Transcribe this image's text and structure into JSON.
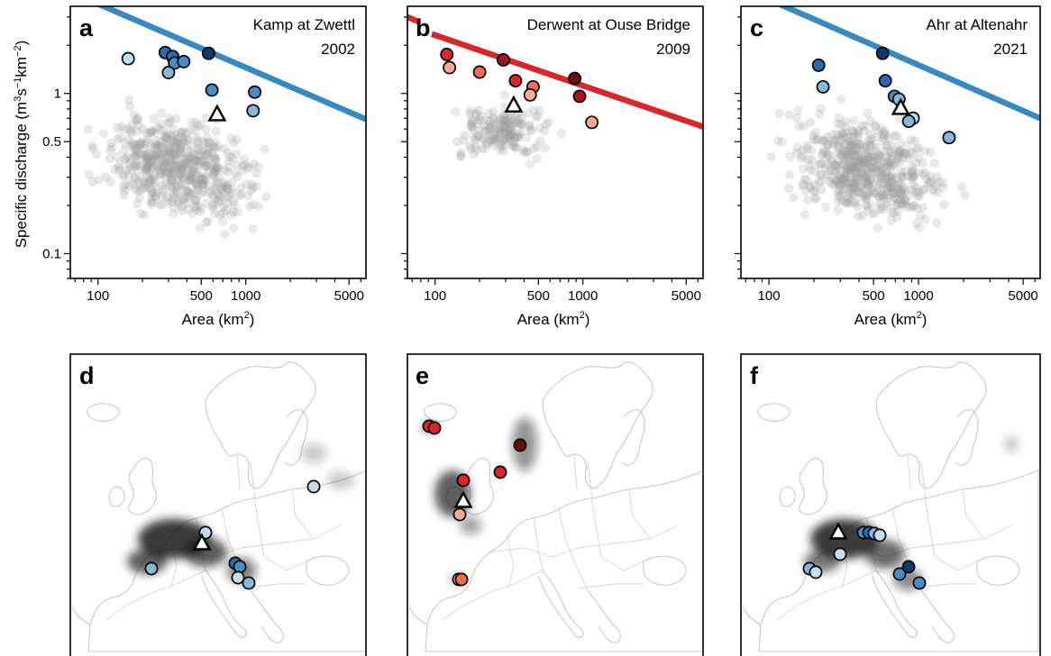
{
  "axis": {
    "ylabel_prefix": "Specific discharge (m",
    "ylabel_sup1": "3",
    "ylabel_mid": "s",
    "ylabel_sup2": "−1",
    "ylabel_mid2": "km",
    "ylabel_sup3": "−2",
    "ylabel_suffix": ")",
    "xlabel_prefix": "Area (km",
    "xlabel_sup": "2",
    "xlabel_suffix": ")"
  },
  "colors": {
    "blue_line": "#3a88c0",
    "red_line": "#d8262b",
    "blues": [
      "#c6dcee",
      "#85b7db",
      "#4a8dc6",
      "#2a6aae",
      "#0f3a6e"
    ],
    "reds": [
      "#f5ab8c",
      "#ef6f50",
      "#d8262b",
      "#a5151c",
      "#6a0b12"
    ]
  },
  "chart_data": [
    {
      "type": "scatter",
      "panel": "a",
      "title": "Kamp at Zwettl",
      "year": "2002",
      "xscale": "log",
      "yscale": "log",
      "xlim": [
        65,
        6500
      ],
      "ylim": [
        0.07,
        3.5
      ],
      "xticks": [
        100,
        500,
        1000,
        5000
      ],
      "xtick_labels": [
        "100",
        "500",
        "1000",
        "5000"
      ],
      "yticks": [
        0.1,
        0.5,
        1
      ],
      "ytick_labels": [
        "0.1",
        "0.5",
        "1"
      ],
      "envelope": {
        "color": "blue",
        "points": [
          [
            65,
            4.3
          ],
          [
            6500,
            0.69
          ]
        ]
      },
      "target": {
        "x": 640,
        "y": 0.74
      },
      "gauges": [
        {
          "x": 160,
          "y": 1.65,
          "shade": 0
        },
        {
          "x": 285,
          "y": 1.8,
          "shade": 3
        },
        {
          "x": 320,
          "y": 1.7,
          "shade": 3
        },
        {
          "x": 330,
          "y": 1.55,
          "shade": 2
        },
        {
          "x": 300,
          "y": 1.35,
          "shade": 1
        },
        {
          "x": 380,
          "y": 1.58,
          "shade": 2
        },
        {
          "x": 560,
          "y": 1.78,
          "shade": 4
        },
        {
          "x": 590,
          "y": 1.05,
          "shade": 2
        },
        {
          "x": 1150,
          "y": 1.02,
          "shade": 2
        },
        {
          "x": 1120,
          "y": 0.78,
          "shade": 1
        }
      ]
    },
    {
      "type": "scatter",
      "panel": "b",
      "title": "Derwent at Ouse Bridge",
      "year": "2009",
      "xscale": "log",
      "yscale": "log",
      "xlim": [
        65,
        6500
      ],
      "ylim": [
        0.07,
        3.5
      ],
      "xticks": [
        100,
        500,
        1000,
        5000
      ],
      "xtick_labels": [
        "100",
        "500",
        "1000",
        "5000"
      ],
      "yticks": [
        0.1,
        0.5,
        1
      ],
      "ytick_labels": [],
      "envelope": {
        "color": "red",
        "segments": [
          [
            [
              65,
              3.0
            ],
            [
              78,
              2.8
            ]
          ],
          [
            [
              95,
              2.35
            ],
            [
              6500,
              0.62
            ]
          ]
        ]
      },
      "target": {
        "x": 340,
        "y": 0.84
      },
      "gauges": [
        {
          "x": 120,
          "y": 1.75,
          "shade": 2
        },
        {
          "x": 125,
          "y": 1.45,
          "shade": 0
        },
        {
          "x": 200,
          "y": 1.36,
          "shade": 1
        },
        {
          "x": 290,
          "y": 1.62,
          "shade": 3
        },
        {
          "x": 350,
          "y": 1.2,
          "shade": 2
        },
        {
          "x": 460,
          "y": 1.1,
          "shade": 1
        },
        {
          "x": 440,
          "y": 0.98,
          "shade": 0
        },
        {
          "x": 880,
          "y": 1.24,
          "shade": 4
        },
        {
          "x": 950,
          "y": 0.96,
          "shade": 3
        },
        {
          "x": 1150,
          "y": 0.66,
          "shade": 0
        }
      ]
    },
    {
      "type": "scatter",
      "panel": "c",
      "title": "Ahr at Altenahr",
      "year": "2021",
      "xscale": "log",
      "yscale": "log",
      "xlim": [
        65,
        6500
      ],
      "ylim": [
        0.07,
        3.5
      ],
      "xticks": [
        100,
        500,
        1000,
        5000
      ],
      "xtick_labels": [
        "100",
        "500",
        "1000",
        "5000"
      ],
      "yticks": [
        0.1,
        0.5,
        1
      ],
      "ytick_labels": [],
      "envelope": {
        "color": "blue",
        "points": [
          [
            65,
            4.6
          ],
          [
            6500,
            0.7
          ]
        ]
      },
      "target": {
        "x": 760,
        "y": 0.81
      },
      "gauges": [
        {
          "x": 215,
          "y": 1.5,
          "shade": 3
        },
        {
          "x": 230,
          "y": 1.1,
          "shade": 1
        },
        {
          "x": 575,
          "y": 1.78,
          "shade": 4
        },
        {
          "x": 600,
          "y": 1.2,
          "shade": 3
        },
        {
          "x": 690,
          "y": 0.96,
          "shade": 2
        },
        {
          "x": 740,
          "y": 0.92,
          "shade": 1
        },
        {
          "x": 920,
          "y": 0.7,
          "shade": 0
        },
        {
          "x": 860,
          "y": 0.67,
          "shade": 1
        },
        {
          "x": 1600,
          "y": 0.53,
          "shade": 1
        }
      ]
    }
  ],
  "maps": [
    {
      "panel": "d"
    },
    {
      "panel": "e"
    },
    {
      "panel": "f"
    }
  ]
}
